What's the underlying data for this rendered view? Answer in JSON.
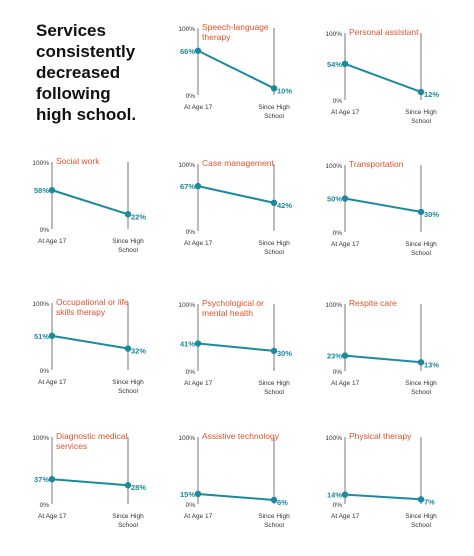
{
  "headline": [
    "Services",
    "consistently",
    "decreased",
    "following",
    "high school."
  ],
  "colors": {
    "line": "#1b8a9e",
    "title": "#e0522a",
    "axis": "#555555",
    "text": "#333333"
  },
  "x_labels": {
    "start": "At Age 17",
    "end_line1": "Since High",
    "end_line2": "School"
  },
  "axis_labels": {
    "top": "100%",
    "bottom": "0%"
  },
  "chart_data": [
    {
      "type": "line",
      "title": [
        "Speech-language",
        "therapy"
      ],
      "categories": [
        "At Age 17",
        "Since High School"
      ],
      "values": [
        66,
        10
      ],
      "ylim": [
        0,
        100
      ]
    },
    {
      "type": "line",
      "title": [
        "Personal assistant"
      ],
      "categories": [
        "At Age 17",
        "Since High School"
      ],
      "values": [
        54,
        12
      ],
      "ylim": [
        0,
        100
      ]
    },
    {
      "type": "line",
      "title": [
        "Social work"
      ],
      "categories": [
        "At Age 17",
        "Since High School"
      ],
      "values": [
        58,
        22
      ],
      "ylim": [
        0,
        100
      ]
    },
    {
      "type": "line",
      "title": [
        "Case management"
      ],
      "categories": [
        "At Age 17",
        "Since High School"
      ],
      "values": [
        67,
        42
      ],
      "ylim": [
        0,
        100
      ]
    },
    {
      "type": "line",
      "title": [
        "Transportation"
      ],
      "categories": [
        "At Age 17",
        "Since High School"
      ],
      "values": [
        50,
        30
      ],
      "ylim": [
        0,
        100
      ]
    },
    {
      "type": "line",
      "title": [
        "Occupational or life",
        "skills therapy"
      ],
      "categories": [
        "At Age 17",
        "Since High School"
      ],
      "values": [
        51,
        32
      ],
      "ylim": [
        0,
        100
      ]
    },
    {
      "type": "line",
      "title": [
        "Psychological or",
        "mental health"
      ],
      "categories": [
        "At Age 17",
        "Since High School"
      ],
      "values": [
        41,
        30
      ],
      "ylim": [
        0,
        100
      ]
    },
    {
      "type": "line",
      "title": [
        "Respite care"
      ],
      "categories": [
        "At Age 17",
        "Since High School"
      ],
      "values": [
        23,
        13
      ],
      "ylim": [
        0,
        100
      ]
    },
    {
      "type": "line",
      "title": [
        "Diagnostic medical",
        "services"
      ],
      "categories": [
        "At Age 17",
        "Since High School"
      ],
      "values": [
        37,
        28
      ],
      "ylim": [
        0,
        100
      ]
    },
    {
      "type": "line",
      "title": [
        "Assistive technology"
      ],
      "categories": [
        "At Age 17",
        "Since High School"
      ],
      "values": [
        15,
        6
      ],
      "ylim": [
        0,
        100
      ]
    },
    {
      "type": "line",
      "title": [
        "Physical therapy"
      ],
      "categories": [
        "At Age 17",
        "Since High School"
      ],
      "values": [
        14,
        7
      ],
      "ylim": [
        0,
        100
      ]
    }
  ]
}
